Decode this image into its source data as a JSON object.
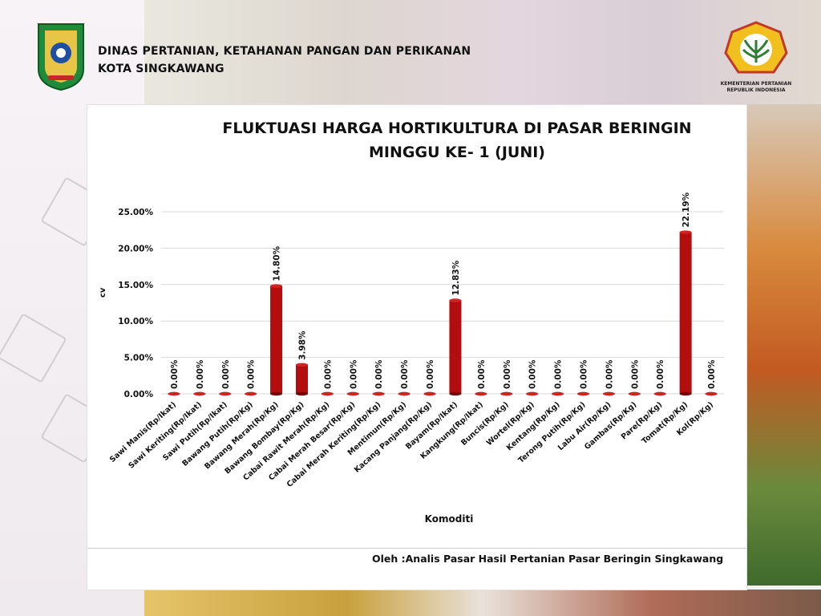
{
  "header": {
    "org_line1": "DINAS PERTANIAN, KETAHANAN PANGAN DAN PERIKANAN",
    "org_line2": "KOTA SINGKAWANG",
    "ministry_line1": "KEMENTERIAN PERTANIAN",
    "ministry_line2": "REPUBLIK INDONESIA"
  },
  "footer": {
    "source": "Oleh :Analis Pasar Hasil Pertanian Pasar Beringin Singkawang"
  },
  "colors": {
    "bar": "#b30d0d",
    "bar_dark": "#6e0606",
    "grid": "#d9d9d9"
  },
  "chart_data": {
    "type": "bar",
    "title_line1": "FLUKTUASI HARGA HORTIKULTURA DI PASAR BERINGIN",
    "title_line2": "MINGGU KE- 1 (JUNI)",
    "xlabel": "Komoditi",
    "ylabel": "cv",
    "ylim": [
      0,
      25
    ],
    "yticks": [
      "0.00%",
      "5.00%",
      "10.00%",
      "15.00%",
      "20.00%",
      "25.00%"
    ],
    "grid": true,
    "categories": [
      "Sawi Manis(Rp/Ikat)",
      "Sawi Keriting(Rp/Ikat)",
      "Sawi Putih(Rp/Ikat)",
      "Bawang Putih(Rp/Kg)",
      "Bawang Merah(Rp/Kg)",
      "Bawang Bombay(Rp/Kg)",
      "Cabai Rawit Merah(Rp/Kg)",
      "Cabai Merah Besar(Rp/Kg)",
      "Cabai Merah Keriting(Rp/Kg)",
      "Mentimun(Rp/Kg)",
      "Kacang Panjang(Rp/Kg)",
      "Bayam(Rp/Ikat)",
      "Kangkung(Rp/Ikat)",
      "Buncis(Rp/Kg)",
      "Wortel(Rp/Kg)",
      "Kentang(Rp/Kg)",
      "Terong Putih(Rp/Kg)",
      "Labu Air(Rp/Kg)",
      "Gambas(Rp/Kg)",
      "Pare(Rp/Kg)",
      "Tomat(Rp/Kg)",
      "Kol(Rp/Kg)"
    ],
    "values": [
      0,
      0,
      0,
      0,
      14.8,
      3.98,
      0,
      0,
      0,
      0,
      0,
      12.83,
      0,
      0,
      0,
      0,
      0,
      0,
      0,
      0,
      22.19,
      0
    ],
    "data_labels": [
      "0.00%",
      "0.00%",
      "0.00%",
      "0.00%",
      "14.80%",
      "3.98%",
      "0.00%",
      "0.00%",
      "0.00%",
      "0.00%",
      "0.00%",
      "12.83%",
      "0.00%",
      "0.00%",
      "0.00%",
      "0.00%",
      "0.00%",
      "0.00%",
      "0.00%",
      "0.00%",
      "22.19%",
      "0.00%"
    ]
  }
}
